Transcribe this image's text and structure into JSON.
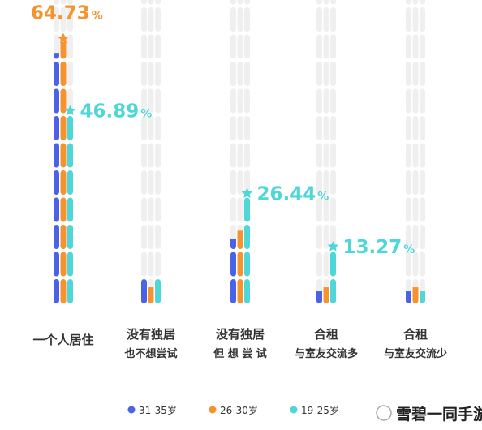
{
  "chart_data": {
    "type": "bar",
    "title": "",
    "xlabel": "",
    "ylabel": "",
    "ylim": [
      0,
      80
    ],
    "categories": [
      {
        "line1": "一个人居住",
        "line2": ""
      },
      {
        "line1": "没有独居",
        "line2": "也不想尝试"
      },
      {
        "line1": "没有独居",
        "line2": "但 想 尝 试"
      },
      {
        "line1": "合租",
        "line2": "与室友交流多"
      },
      {
        "line1": "合租",
        "line2": "与室友交流少"
      }
    ],
    "series": [
      {
        "name": "31-35岁",
        "color": "#4a63e6",
        "values": [
          62,
          6,
          16,
          3,
          3
        ]
      },
      {
        "name": "26-30岁",
        "color": "#f5932f",
        "values": [
          64.73,
          4,
          18,
          4,
          4
        ]
      },
      {
        "name": "19-25岁",
        "color": "#4fd6d8",
        "values": [
          46.89,
          6,
          26.44,
          13.27,
          3
        ]
      }
    ],
    "annotations": [
      {
        "category": 0,
        "series": 1,
        "value": "64.73",
        "unit": "%",
        "color": "#f5932f"
      },
      {
        "category": 0,
        "series": 2,
        "value": "46.89",
        "unit": "%",
        "color": "#4fd6d8"
      },
      {
        "category": 2,
        "series": 2,
        "value": "26.44",
        "unit": "%",
        "color": "#4fd6d8"
      },
      {
        "category": 3,
        "series": 2,
        "value": "13.27",
        "unit": "%",
        "color": "#4fd6d8"
      }
    ],
    "legend_position": "bottom"
  },
  "watermark": {
    "text": "雪碧一同手游网"
  }
}
